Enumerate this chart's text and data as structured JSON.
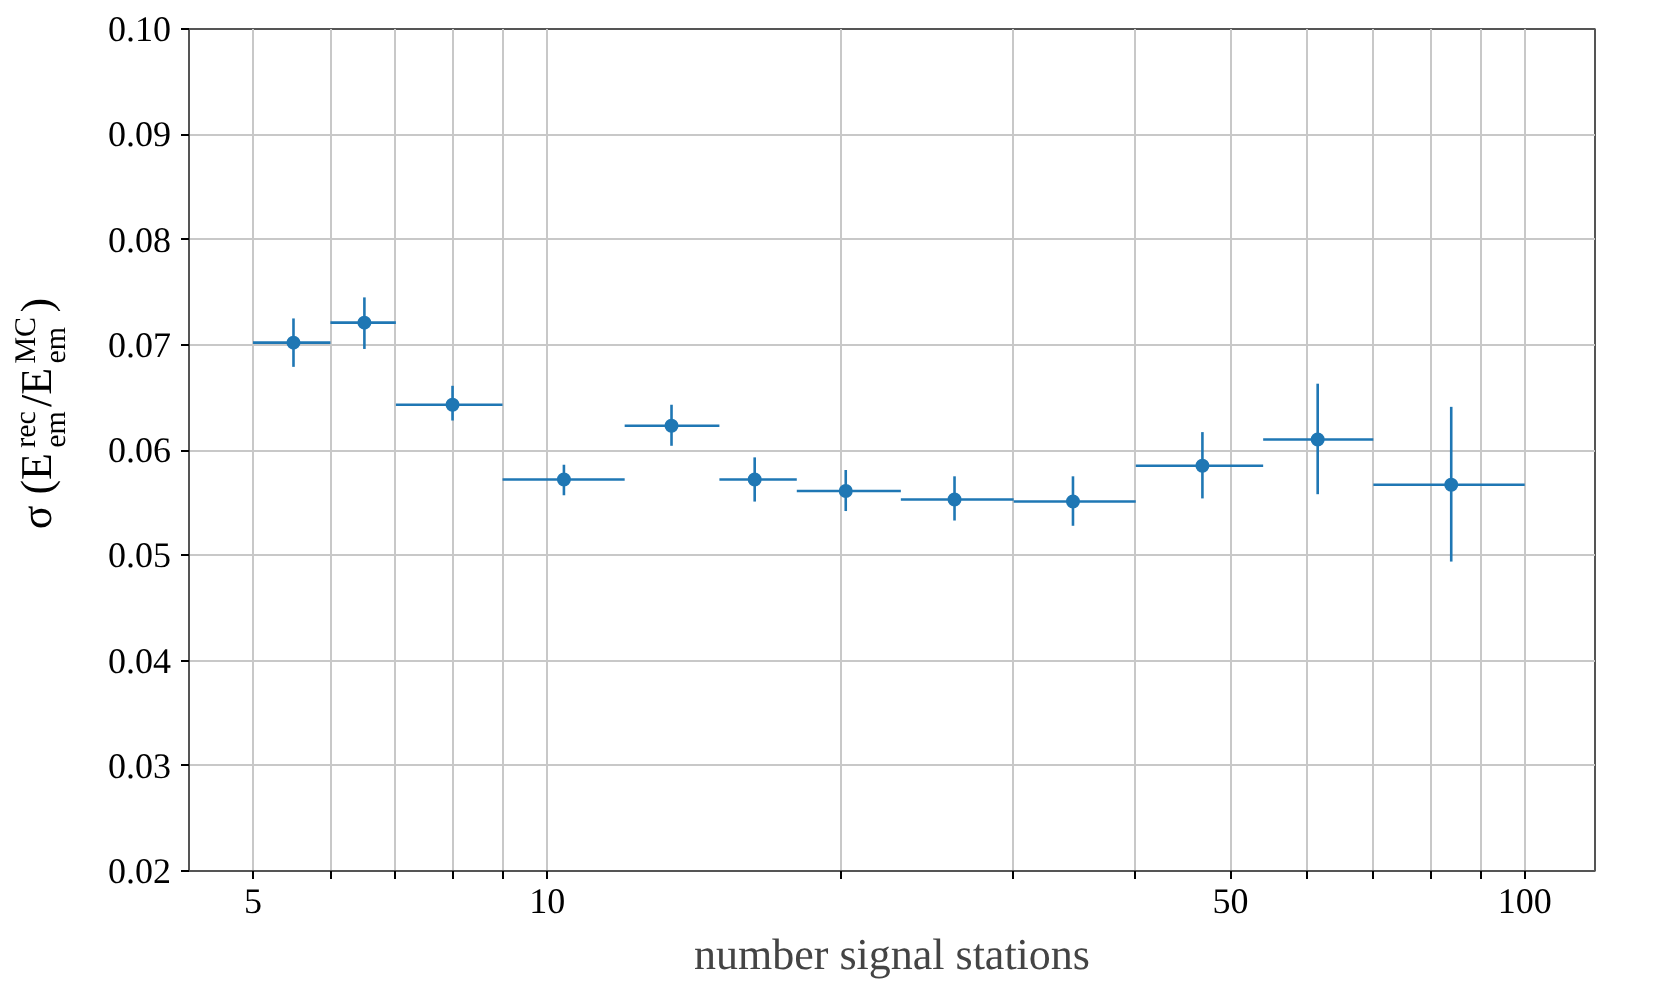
{
  "chart_data": {
    "type": "scatter",
    "xlabel": "number signal stations",
    "ylabel": "σ (E$_{em}$$^{rec}$/E$_{em}$$^{MC}$)",
    "log": "x",
    "x": [
      5.5,
      6.5,
      8,
      10.4,
      13.4,
      16.3,
      20.2,
      26.1,
      34.5,
      46.8,
      61.4,
      84.1
    ],
    "series": [
      {
        "color": "#1f77b4",
        "values": [
          0.0702,
          0.0721,
          0.0643,
          0.0572,
          0.0623,
          0.0572,
          0.0561,
          0.0553,
          0.0551,
          0.0585,
          0.061,
          0.0567
        ],
        "errors": [
          [
            0.0679,
            0.0725
          ],
          [
            0.0696,
            0.0745
          ],
          [
            0.0628,
            0.0661
          ],
          [
            0.0557,
            0.0586
          ],
          [
            0.0604,
            0.0643
          ],
          [
            0.0551,
            0.0593
          ],
          [
            0.0542,
            0.0581
          ],
          [
            0.0533,
            0.0575
          ],
          [
            0.0528,
            0.0575
          ],
          [
            0.0554,
            0.0617
          ],
          [
            0.0558,
            0.0663
          ],
          [
            0.0494,
            0.0641
          ]
        ],
        "xerrors": [
          [
            5,
            6
          ],
          [
            6,
            7
          ],
          [
            7,
            9
          ],
          [
            9,
            12
          ],
          [
            12,
            15
          ],
          [
            15,
            18
          ],
          [
            18,
            23
          ],
          [
            23,
            30
          ],
          [
            30,
            40
          ],
          [
            40,
            54
          ],
          [
            54,
            70
          ],
          [
            70,
            100
          ]
        ]
      }
    ],
    "marker": "circle",
    "xlim": [
      4.3,
      118
    ],
    "ylim": [
      0.02,
      0.1
    ],
    "xticks": [
      5,
      {
        "value": 6,
        "label": null
      },
      {
        "value": 7,
        "label": null
      },
      {
        "value": 8,
        "label": null
      },
      {
        "value": 9,
        "label": null
      },
      10,
      {
        "value": 20,
        "label": null
      },
      {
        "value": 30,
        "label": null
      },
      {
        "value": 40,
        "label": null
      },
      50,
      {
        "value": 60,
        "label": null
      },
      {
        "value": 70,
        "label": null
      },
      {
        "value": 80,
        "label": null
      },
      {
        "value": 90,
        "label": null
      },
      100
    ],
    "yticks": [
      {
        "value": 0.02,
        "label": "0.02"
      },
      {
        "value": 0.03,
        "label": "0.03"
      },
      {
        "value": 0.04,
        "label": "0.04"
      },
      {
        "value": 0.05,
        "label": "0.05"
      },
      {
        "value": 0.06,
        "label": "0.06"
      },
      {
        "value": 0.07,
        "label": "0.07"
      },
      {
        "value": 0.08,
        "label": "0.08"
      },
      {
        "value": 0.09,
        "label": "0.09"
      },
      {
        "value": 0.1,
        "label": "0.10"
      }
    ],
    "grid": true
  }
}
